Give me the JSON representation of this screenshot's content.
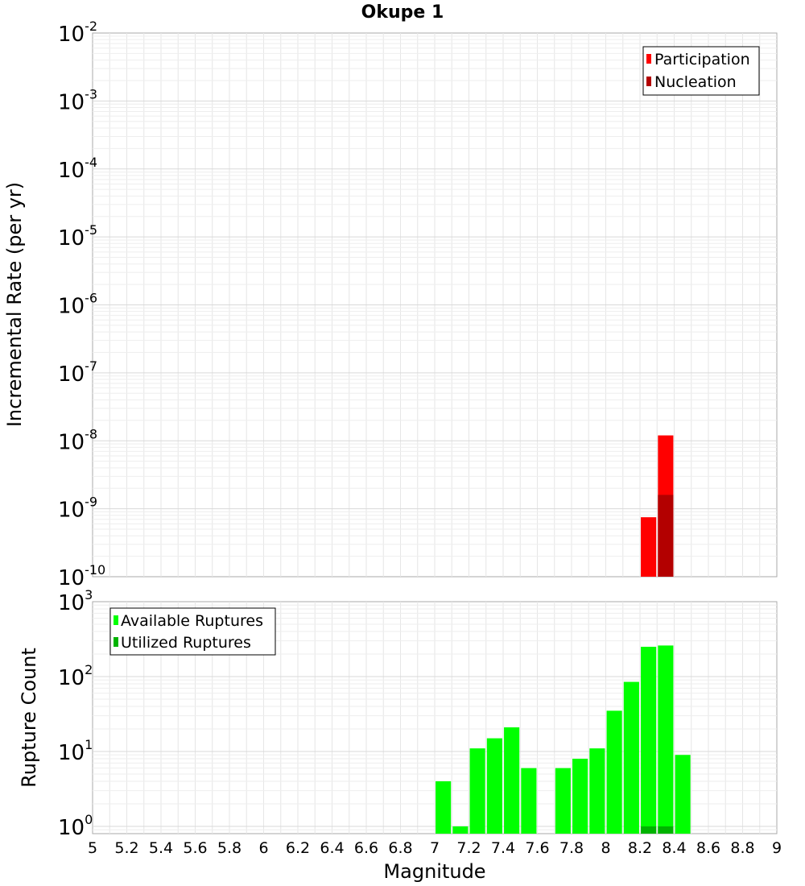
{
  "title": "Okupe 1",
  "chart_data": [
    {
      "type": "bar",
      "title": "Okupe 1",
      "xlabel": "Magnitude",
      "ylabel": "Incremental Rate (per yr)",
      "yscale": "log",
      "xlim": [
        5,
        9
      ],
      "ylim": [
        1e-10,
        0.01
      ],
      "ytick_mantissas": [
        "10",
        "10",
        "10",
        "10",
        "10",
        "10",
        "10",
        "10",
        "10"
      ],
      "ytick_exponents": [
        "-10",
        "-9",
        "-8",
        "-7",
        "-6",
        "-5",
        "-4",
        "-3",
        "-2"
      ],
      "legend_position": "top-right",
      "series": [
        {
          "name": "Participation",
          "color": "#ff0000",
          "x": [
            8.25,
            8.35
          ],
          "values": [
            7.5e-10,
            1.2e-08
          ]
        },
        {
          "name": "Nucleation",
          "color": "#b30000",
          "x": [
            8.35
          ],
          "values": [
            1.6e-09
          ]
        }
      ]
    },
    {
      "type": "bar",
      "xlabel": "Magnitude",
      "ylabel": "Rupture Count",
      "yscale": "log",
      "xlim": [
        5,
        9
      ],
      "ylim": [
        0.8,
        1000
      ],
      "ytick_mantissas": [
        "10",
        "10",
        "10",
        "10"
      ],
      "ytick_exponents": [
        "0",
        "1",
        "2",
        "3"
      ],
      "legend_position": "top-left",
      "series": [
        {
          "name": "Available Ruptures",
          "color": "#00ff00",
          "x": [
            7.05,
            7.15,
            7.25,
            7.35,
            7.45,
            7.55,
            7.75,
            7.85,
            7.95,
            8.05,
            8.15,
            8.25,
            8.35,
            8.45
          ],
          "values": [
            4,
            1,
            11,
            15,
            21,
            6,
            6,
            8,
            11,
            35,
            85,
            250,
            260,
            9
          ]
        },
        {
          "name": "Utilized Ruptures",
          "color": "#00b300",
          "x": [
            8.25,
            8.35
          ],
          "values": [
            1,
            1
          ]
        }
      ]
    }
  ],
  "xticks": [
    "5",
    "5.2",
    "5.4",
    "5.6",
    "5.8",
    "6",
    "6.2",
    "6.4",
    "6.6",
    "6.8",
    "7",
    "7.2",
    "7.4",
    "7.6",
    "7.8",
    "8",
    "8.2",
    "8.4",
    "8.6",
    "8.8",
    "9"
  ]
}
